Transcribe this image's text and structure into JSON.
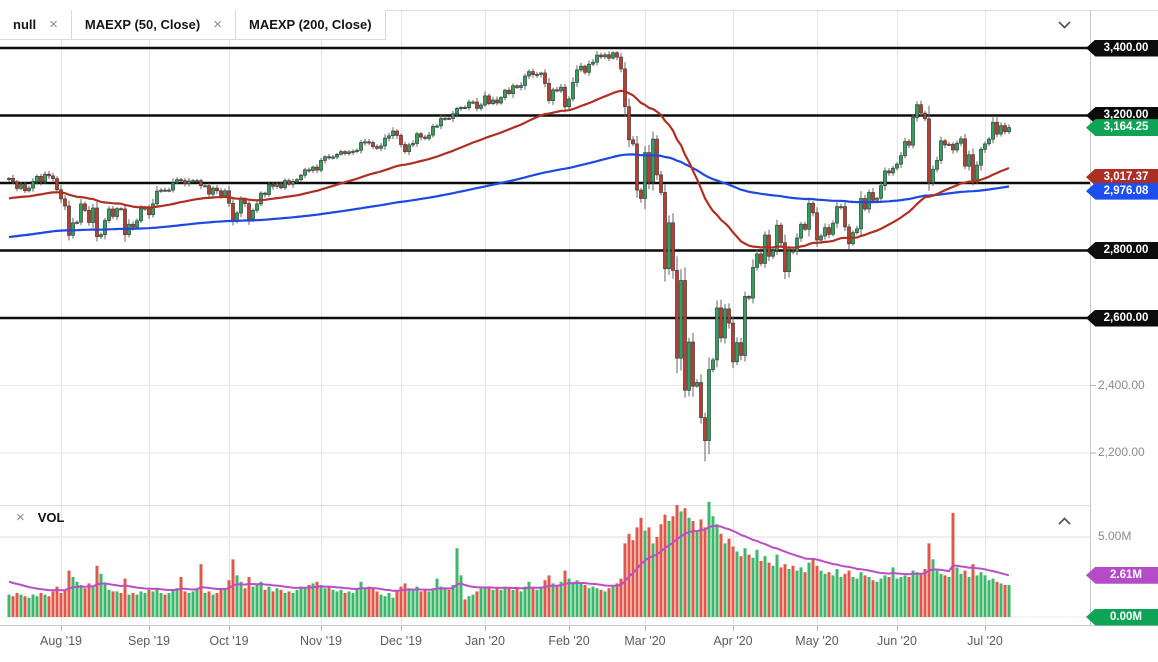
{
  "legend": {
    "items": [
      {
        "label": "null",
        "closable": true
      },
      {
        "label": "MAEXP (50, Close)",
        "closable": true
      },
      {
        "label": "MAEXP (200, Close)",
        "closable": false
      }
    ]
  },
  "volume_panel": {
    "label": "VOL",
    "closable": true
  },
  "icons": {
    "close": "×"
  },
  "colors": {
    "candle_up": "#2aa35c",
    "candle_down": "#c13a2c",
    "candle_border": "#3a3a3a",
    "wick": "#666666",
    "vol_up": "#3cb76b",
    "vol_down": "#e2574b",
    "ma50": "#b02f23",
    "ma200": "#1d49e0",
    "vol_ma": "#bb4ec6",
    "level_line": "#0c0c0c",
    "grid": "#e4e4e4",
    "minor_grid": "#e9e9e9",
    "panel_border": "#c9c9c9",
    "tag_black": "#0c0c0c",
    "tag_green": "#0fa355",
    "tag_red": "#ab2f23",
    "tag_blue": "#1d4fee",
    "tag_magenta": "#b44bc7"
  },
  "price_axis": {
    "tags": [
      {
        "text": "3,400.00",
        "price": 3400,
        "color_key": "tag_black"
      },
      {
        "text": "3,200.00",
        "price": 3200,
        "color_key": "tag_black"
      },
      {
        "text": "2,800.00",
        "price": 2800,
        "color_key": "tag_black"
      },
      {
        "text": "2,600.00",
        "price": 2600,
        "color_key": "tag_black"
      },
      {
        "text": "3,017.37",
        "price": 3017.37,
        "color_key": "tag_red"
      },
      {
        "text": "2,976.08",
        "price": 2976.08,
        "color_key": "tag_blue"
      },
      {
        "text": "3,164.25",
        "price": 3164.25,
        "color_key": "tag_green"
      }
    ],
    "plain_labels": [
      {
        "text": "2,400.00",
        "price": 2400
      },
      {
        "text": "2,200.00",
        "price": 2200
      }
    ]
  },
  "volume_axis": {
    "plain_labels": [
      {
        "text": "5.00M",
        "value": 5
      }
    ],
    "tags": [
      {
        "text": "2.61M",
        "value": 2.61,
        "color_key": "tag_magenta"
      },
      {
        "text": "0.00M",
        "value": 0,
        "color_key": "tag_green"
      }
    ]
  },
  "chart_data": {
    "type": "candlestick",
    "title": "",
    "x_labels": [
      "Aug '19",
      "Sep '19",
      "Oct '19",
      "Nov '19",
      "Dec '19",
      "Jan '20",
      "Feb '20",
      "Mar '20",
      "Apr '20",
      "May '20",
      "Jun '20",
      "Jul '20"
    ],
    "months": [
      {
        "label": "Aug '19",
        "start_idx": 13
      },
      {
        "label": "Sep '19",
        "start_idx": 35
      },
      {
        "label": "Oct '19",
        "start_idx": 55
      },
      {
        "label": "Nov '19",
        "start_idx": 78
      },
      {
        "label": "Dec '19",
        "start_idx": 98
      },
      {
        "label": "Jan '20",
        "start_idx": 119
      },
      {
        "label": "Feb '20",
        "start_idx": 140
      },
      {
        "label": "Mar '20",
        "start_idx": 159
      },
      {
        "label": "Apr '20",
        "start_idx": 181
      },
      {
        "label": "May '20",
        "start_idx": 202
      },
      {
        "label": "Jun '20",
        "start_idx": 222
      },
      {
        "label": "Jul '20",
        "start_idx": 244
      }
    ],
    "first_open": 3010,
    "closes": [
      3014,
      3004,
      2984,
      2995,
      2977,
      2985,
      3005,
      3020,
      3004,
      3026,
      3021,
      3013,
      2980,
      2953,
      2932,
      2845,
      2882,
      2884,
      2938,
      2919,
      2883,
      2926,
      2841,
      2847,
      2889,
      2923,
      2901,
      2924,
      2923,
      2847,
      2878,
      2869,
      2888,
      2925,
      2926,
      2906,
      2938,
      2976,
      2979,
      2978,
      2979,
      3001,
      3010,
      3007,
      2998,
      3006,
      3007,
      3007,
      2992,
      2992,
      2967,
      2985,
      2977,
      2962,
      2977,
      2940,
      2888,
      2911,
      2952,
      2939,
      2893,
      2919,
      2938,
      2970,
      2966,
      2996,
      2990,
      2998,
      2986,
      3007,
      2996,
      3005,
      3010,
      3023,
      3039,
      3037,
      3047,
      3038,
      3067,
      3078,
      3075,
      3077,
      3085,
      3093,
      3087,
      3092,
      3094,
      3097,
      3120,
      3122,
      3120,
      3108,
      3103,
      3110,
      3133,
      3140,
      3154,
      3141,
      3114,
      3093,
      3113,
      3117,
      3146,
      3136,
      3132,
      3142,
      3168,
      3169,
      3191,
      3192,
      3191,
      3205,
      3221,
      3224,
      3223,
      3240,
      3240,
      3221,
      3231,
      3258,
      3235,
      3246,
      3237,
      3253,
      3275,
      3265,
      3288,
      3283,
      3289,
      3317,
      3330,
      3321,
      3322,
      3326,
      3295,
      3244,
      3276,
      3273,
      3284,
      3226,
      3249,
      3298,
      3335,
      3346,
      3328,
      3352,
      3358,
      3379,
      3374,
      3380,
      3370,
      3386,
      3373,
      3338,
      3226,
      3128,
      3116,
      2979,
      2954,
      3090,
      3003,
      3130,
      3024,
      2972,
      2746,
      2882,
      2741,
      2481,
      2711,
      2386,
      2529,
      2398,
      2409,
      2305,
      2237,
      2447,
      2476,
      2630,
      2541,
      2627,
      2585,
      2470,
      2527,
      2489,
      2664,
      2659,
      2750,
      2790,
      2762,
      2846,
      2783,
      2800,
      2875,
      2823,
      2737,
      2799,
      2798,
      2837,
      2878,
      2863,
      2940,
      2912,
      2831,
      2843,
      2868,
      2848,
      2881,
      2930,
      2930,
      2870,
      2820,
      2853,
      2864,
      2954,
      2923,
      2972,
      2949,
      2955,
      2992,
      3036,
      3030,
      3044,
      3056,
      3081,
      3123,
      3112,
      3194,
      3232,
      3207,
      3190,
      3002,
      3041,
      3067,
      3125,
      3113,
      3115,
      3098,
      3118,
      3131,
      3050,
      3084,
      3009,
      3053,
      3100,
      3116,
      3130,
      3180,
      3145,
      3170,
      3152,
      3164.25
    ],
    "volumes": [
      1.4,
      1.3,
      1.5,
      1.4,
      1.3,
      1.2,
      1.4,
      1.3,
      1.5,
      1.4,
      1.3,
      1.6,
      1.9,
      1.5,
      1.7,
      2.9,
      2.5,
      2.2,
      2.0,
      1.8,
      2.1,
      1.9,
      3.2,
      2.7,
      2.1,
      1.7,
      1.6,
      1.6,
      1.5,
      2.4,
      1.4,
      1.5,
      1.4,
      1.6,
      1.5,
      1.7,
      1.6,
      1.8,
      1.5,
      1.4,
      1.5,
      1.7,
      1.8,
      2.5,
      1.6,
      1.5,
      1.6,
      1.8,
      3.3,
      1.5,
      1.6,
      1.4,
      1.5,
      1.7,
      1.8,
      2.3,
      3.6,
      2.6,
      2.2,
      1.8,
      2.5,
      1.9,
      2.0,
      2.2,
      1.7,
      1.9,
      1.6,
      1.8,
      1.7,
      1.5,
      1.6,
      1.5,
      1.7,
      1.9,
      1.8,
      2.0,
      2.1,
      2.2,
      2.0,
      1.8,
      1.9,
      1.7,
      1.6,
      1.7,
      1.5,
      1.6,
      1.5,
      1.7,
      2.2,
      1.8,
      1.9,
      1.8,
      1.6,
      1.4,
      1.3,
      1.5,
      1.2,
      1.6,
      1.9,
      2.1,
      1.8,
      1.7,
      1.9,
      1.6,
      1.7,
      1.6,
      1.8,
      2.4,
      1.9,
      1.8,
      1.7,
      2.0,
      4.3,
      2.6,
      1.1,
      1.3,
      1.4,
      1.6,
      1.8,
      1.8,
      1.9,
      1.7,
      1.8,
      1.7,
      1.9,
      1.8,
      1.7,
      1.8,
      1.6,
      1.9,
      2.2,
      1.8,
      1.7,
      1.9,
      2.3,
      2.6,
      2.1,
      2.0,
      2.2,
      2.9,
      2.4,
      2.2,
      2.3,
      2.1,
      2.0,
      1.8,
      1.9,
      1.8,
      1.7,
      1.6,
      1.8,
      1.9,
      2.1,
      2.4,
      4.6,
      5.2,
      4.8,
      5.6,
      6.2,
      5.4,
      5.6,
      4.6,
      5.0,
      5.8,
      6.4,
      6.0,
      6.3,
      7.0,
      6.6,
      6.8,
      6.2,
      6.0,
      5.4,
      6.1,
      5.6,
      7.2,
      6.3,
      5.8,
      5.2,
      4.6,
      4.9,
      4.4,
      4.1,
      3.8,
      4.3,
      3.9,
      3.7,
      4.2,
      3.5,
      3.8,
      3.4,
      3.2,
      3.9,
      3.1,
      3.3,
      3.0,
      3.2,
      2.9,
      3.1,
      2.8,
      3.4,
      3.6,
      3.2,
      2.9,
      2.7,
      2.8,
      2.6,
      3.0,
      2.5,
      2.7,
      2.9,
      2.5,
      2.4,
      2.8,
      2.6,
      2.5,
      2.3,
      2.2,
      2.4,
      2.6,
      2.5,
      3.1,
      2.4,
      2.5,
      2.6,
      2.5,
      2.9,
      2.8,
      2.7,
      3.0,
      4.6,
      3.6,
      2.9,
      2.7,
      2.6,
      2.5,
      6.5,
      3.1,
      2.7,
      2.9,
      2.5,
      3.3,
      2.6,
      2.8,
      2.6,
      2.3,
      2.4,
      2.2,
      2.1,
      2.0,
      2.0
    ],
    "price_levels": [
      3400,
      3200,
      3000,
      2800,
      2600
    ],
    "minor_price_gridlines": [
      2400,
      2200
    ],
    "ylim": [
      2050,
      3424
    ],
    "volume_ylim_millions": [
      0,
      5.5
    ],
    "last_close": 3164.25,
    "overlays": [
      {
        "label": "MAEXP (50, Close)",
        "type": "ema",
        "period": 50,
        "last_value": 3017.37
      },
      {
        "label": "MAEXP (200, Close)",
        "type": "ema",
        "period": 200,
        "last_value": 2976.08
      }
    ],
    "volume_ma": {
      "period": 20,
      "last_value_millions": 2.61
    }
  }
}
